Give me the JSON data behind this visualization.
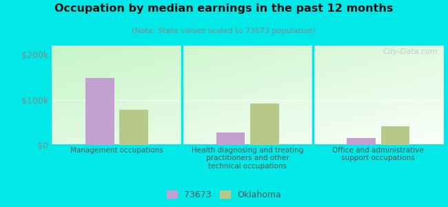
{
  "title": "Occupation by median earnings in the past 12 months",
  "subtitle": "(Note: State values scaled to 73673 population)",
  "categories": [
    "Management occupations",
    "Health diagnosing and treating\npractitioners and other\ntechnical occupations",
    "Office and administrative\nsupport occupations"
  ],
  "series_73673": [
    148000,
    28000,
    15000
  ],
  "series_oklahoma": [
    78000,
    92000,
    42000
  ],
  "color_73673": "#c4a0d0",
  "color_oklahoma": "#b8c888",
  "ylim": [
    0,
    220000
  ],
  "yticks": [
    0,
    100000,
    200000
  ],
  "ytick_labels": [
    "$0",
    "$100k",
    "$200k"
  ],
  "plot_bg_top_left": "#c0e8c0",
  "plot_bg_bottom_right": "#f5fff5",
  "outer_background": "#00e8e8",
  "legend_label_1": "73673",
  "legend_label_2": "Oklahoma",
  "watermark": "City-Data.com"
}
